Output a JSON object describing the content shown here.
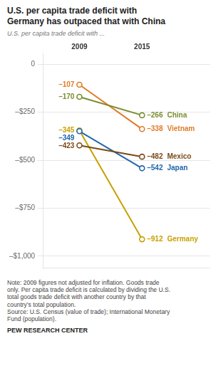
{
  "chart_data": {
    "type": "line",
    "title": "U.S. per capita trade deficit with\nGermany has outpaced that with China",
    "subtitle": "U.S. per capita trade deficit with ...",
    "x": [
      2009,
      2015
    ],
    "xlim": [
      2005.5,
      2021.5
    ],
    "series": [
      {
        "name": "China",
        "color": "#7a8c2e",
        "values": [
          -170,
          -266
        ],
        "value_labels": [
          "–170",
          "–266"
        ]
      },
      {
        "name": "Vietnam",
        "color": "#e07b2a",
        "values": [
          -107,
          -338
        ],
        "value_labels": [
          "–107",
          "–338"
        ]
      },
      {
        "name": "Mexico",
        "color": "#7a4a18",
        "values": [
          -423,
          -482
        ],
        "value_labels": [
          "–423",
          "–482"
        ]
      },
      {
        "name": "Japan",
        "color": "#2166ac",
        "values": [
          -349,
          -542
        ],
        "value_labels": [
          "–349",
          "–542"
        ]
      },
      {
        "name": "Germany",
        "color": "#c8a000",
        "values": [
          -345,
          -912
        ],
        "value_labels": [
          "–345",
          "–912"
        ]
      }
    ],
    "ylim": [
      -1060,
      60
    ],
    "yticks": [
      0,
      {
        "value": -250,
        "label": "–$250"
      },
      {
        "value": -500,
        "label": "–$500"
      },
      {
        "value": -750,
        "label": "–$750"
      },
      {
        "value": -1000,
        "label": "–$1,000"
      }
    ],
    "grid": true,
    "data_labels": true,
    "marker": "circle",
    "tick_labels": "y",
    "annotations": [
      "Note: 2009 figures not adjusted for inflation. Goods trade",
      "only. Per capita trade deficit is calculated by dividing the U.S.",
      "total goods trade deficit with another country by that",
      "country’s total population.",
      "Source: U.S. Census (value of trade); International Monetary",
      "Fund (population)."
    ],
    "source": "PEW RESEARCH CENTER"
  }
}
